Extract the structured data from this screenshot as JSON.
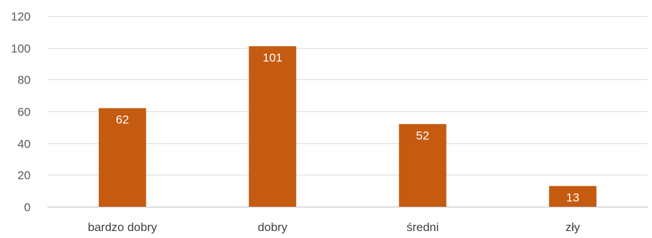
{
  "chart_data": {
    "type": "bar",
    "categories": [
      "bardzo dobry",
      "dobry",
      "średni",
      "zły"
    ],
    "values": [
      62,
      101,
      52,
      13
    ],
    "ylim": [
      0,
      120
    ],
    "yticks": [
      0,
      20,
      40,
      60,
      80,
      100,
      120
    ],
    "grid": true,
    "data_labels": true,
    "bar_color": "#C55A11",
    "data_label_color": "#FFFFFF"
  }
}
